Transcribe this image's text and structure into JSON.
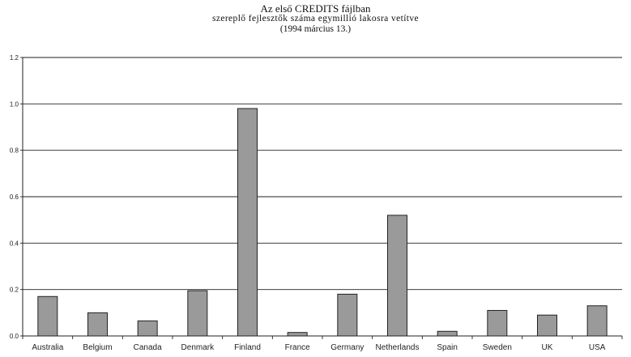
{
  "chart_data": {
    "type": "bar",
    "title_lines": [
      "Az első CREDITS fájlban",
      "szereplő fejlesztők száma egymillió lakosra vetítve",
      "(1994 március 13.)"
    ],
    "categories": [
      "Australia",
      "Belgium",
      "Canada",
      "Denmark",
      "Finland",
      "France",
      "Germany",
      "Netherlands",
      "Spain",
      "Sweden",
      "UK",
      "USA"
    ],
    "values": [
      0.17,
      0.1,
      0.065,
      0.195,
      0.98,
      0.015,
      0.18,
      0.52,
      0.02,
      0.11,
      0.09,
      0.13
    ],
    "yticks": [
      "0.0",
      "0.2",
      "0.4",
      "0.6",
      "0.8",
      "1.0",
      "1.2"
    ],
    "ylim": [
      0,
      1.2
    ],
    "grid": true,
    "bar_color": "#9a9a9a"
  }
}
